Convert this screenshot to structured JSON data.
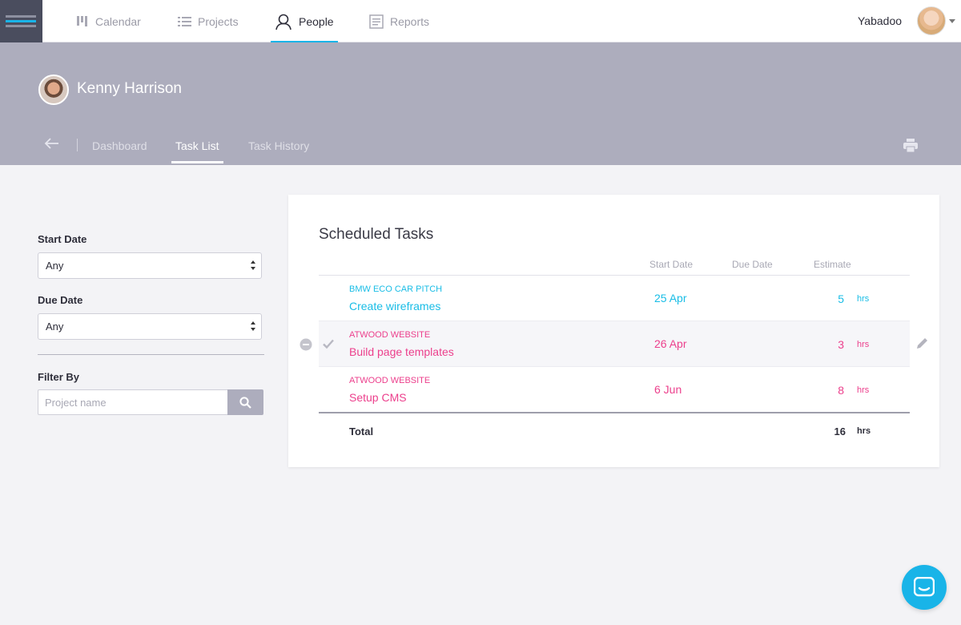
{
  "nav": {
    "items": [
      {
        "label": "Calendar",
        "icon": "calendar-icon"
      },
      {
        "label": "Projects",
        "icon": "list-icon"
      },
      {
        "label": "People",
        "icon": "person-icon"
      },
      {
        "label": "Reports",
        "icon": "document-icon"
      }
    ],
    "active": "People",
    "username": "Yabadoo"
  },
  "profile": {
    "name": "Kenny Harrison"
  },
  "subtabs": [
    "Dashboard",
    "Task List",
    "Task History"
  ],
  "active_subtab": "Task List",
  "filters": {
    "start_date_label": "Start Date",
    "start_date_value": "Any",
    "due_date_label": "Due Date",
    "due_date_value": "Any",
    "filter_by_label": "Filter By",
    "search_placeholder": "Project name"
  },
  "tasks": {
    "title": "Scheduled Tasks",
    "columns": [
      "Start Date",
      "Due Date",
      "Estimate"
    ],
    "rows": [
      {
        "project": "BMW ECO CAR PITCH",
        "task": "Create wireframes",
        "start": "25 Apr",
        "due": "",
        "estimate": "5",
        "unit": "hrs",
        "color": "#19bde6"
      },
      {
        "project": "ATWOOD WEBSITE",
        "task": "Build page templates",
        "start": "26 Apr",
        "due": "",
        "estimate": "3",
        "unit": "hrs",
        "color": "#ec3f8c"
      },
      {
        "project": "ATWOOD WEBSITE",
        "task": "Setup CMS",
        "start": "6 Jun",
        "due": "",
        "estimate": "8",
        "unit": "hrs",
        "color": "#ec3f8c"
      }
    ],
    "total_label": "Total",
    "total_value": "16",
    "total_unit": "hrs"
  },
  "colors": {
    "accent": "#19b4e8",
    "band": "#adadbd",
    "cyan_project": "#19bde6",
    "pink_project": "#ec3f8c"
  }
}
